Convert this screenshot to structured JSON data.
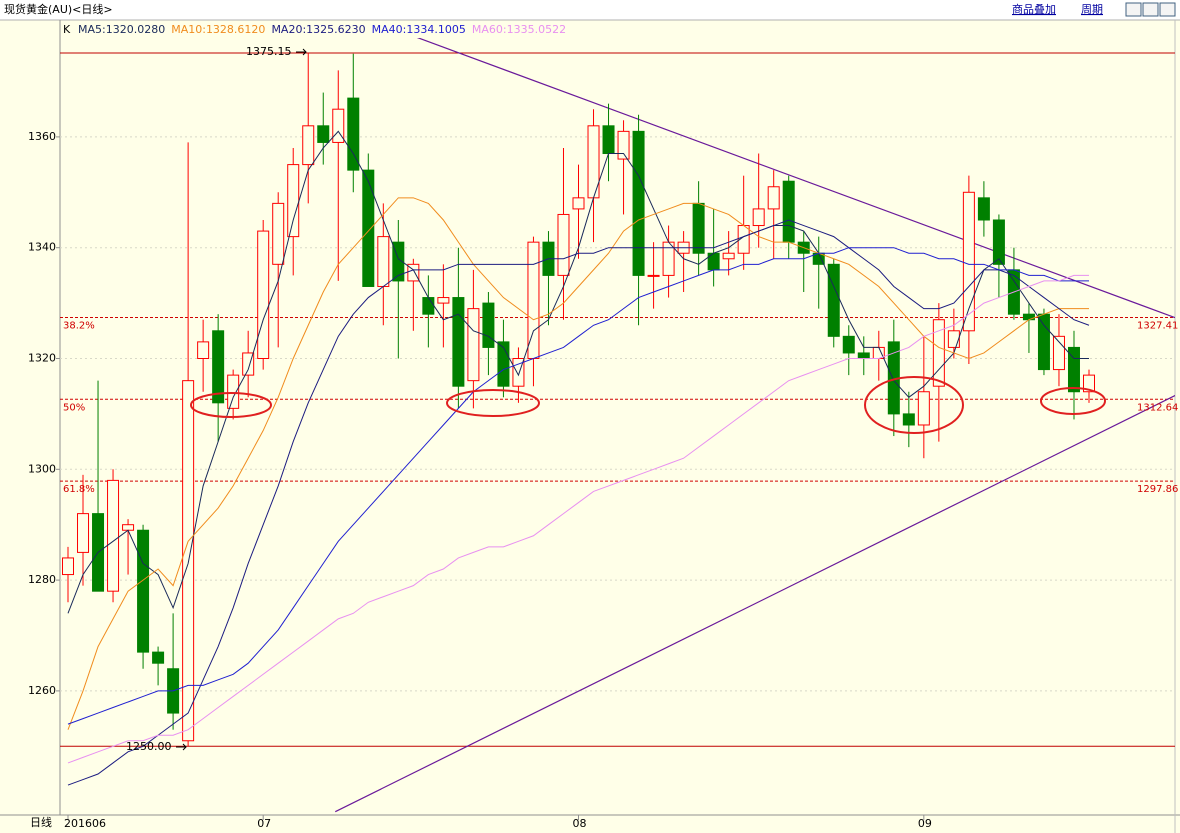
{
  "header": {
    "title": "现货黄金(AU)<日线>",
    "links": [
      "商品叠加",
      "周期"
    ],
    "bottom_label": "日线"
  },
  "chart_data": {
    "type": "candlestick",
    "legend_prefix": "K",
    "ylim": [
      1237.6,
      1381.1
    ],
    "yticks": [
      1260,
      1280,
      1300,
      1320,
      1340,
      1360
    ],
    "grid": true,
    "up_color": "#ff0000",
    "down_color": "#008000",
    "categories": [
      "201606",
      null,
      null,
      null,
      null,
      null,
      null,
      null,
      null,
      null,
      null,
      null,
      null,
      "07",
      null,
      null,
      null,
      null,
      null,
      null,
      null,
      null,
      null,
      null,
      null,
      null,
      null,
      null,
      null,
      null,
      null,
      null,
      null,
      null,
      "08",
      null,
      null,
      null,
      null,
      null,
      null,
      null,
      null,
      null,
      null,
      null,
      null,
      null,
      null,
      null,
      null,
      null,
      null,
      null,
      null,
      null,
      null,
      "09",
      null,
      null,
      null,
      null,
      null,
      null,
      null,
      null,
      null,
      null,
      null
    ],
    "open": [
      1281,
      1285,
      1292,
      1278,
      1289,
      1289,
      1267,
      1264,
      1251,
      1320,
      1325,
      1311,
      1317,
      1320,
      1337,
      1342,
      1355,
      1362,
      1359,
      1367,
      1354,
      1333,
      1341,
      1334,
      1331,
      1330,
      1331,
      1316,
      1330,
      1323,
      1315,
      1320,
      1341,
      1335,
      1347,
      1349,
      1362,
      1356,
      1361,
      1335,
      1335,
      1339,
      1348,
      1339,
      1338,
      1339,
      1344,
      1347,
      1352,
      1341,
      1339,
      1337,
      1324,
      1321,
      1320,
      1323,
      1310,
      1308,
      1315,
      1322,
      1325,
      1349,
      1345,
      1336,
      1328,
      1328,
      1318,
      1322,
      1314
    ],
    "high": [
      1286,
      1299,
      1316,
      1300,
      1291,
      1290,
      1268,
      1274,
      1359,
      1327,
      1328,
      1318,
      1325,
      1345,
      1350,
      1358,
      1375.15,
      1368,
      1372,
      1375,
      1357,
      1348,
      1345,
      1338,
      1335,
      1337,
      1340,
      1336,
      1332,
      1327,
      1322,
      1342,
      1343,
      1358,
      1355,
      1365,
      1366,
      1363,
      1364,
      1341,
      1344,
      1343,
      1352,
      1347,
      1343,
      1353,
      1357,
      1354,
      1353,
      1343,
      1342,
      1338,
      1326,
      1324,
      1325,
      1327,
      1314,
      1324,
      1330,
      1329,
      1353,
      1352,
      1346,
      1340,
      1330,
      1329,
      1328,
      1325,
      1318
    ],
    "low": [
      1276,
      1279,
      1278,
      1276,
      1281,
      1264,
      1261,
      1253,
      1250,
      1314,
      1305,
      1309,
      1313,
      1318,
      1322,
      1335,
      1348,
      1355,
      1334,
      1350,
      1333,
      1326,
      1320,
      1325,
      1322,
      1322,
      1311,
      1311,
      1317,
      1313,
      1312,
      1315,
      1326,
      1327,
      1338,
      1341,
      1352,
      1346,
      1326,
      1329,
      1331,
      1332,
      1335,
      1333,
      1335,
      1336,
      1340,
      1338,
      1338,
      1332,
      1329,
      1322,
      1317,
      1317,
      1316,
      1306,
      1304,
      1302,
      1305,
      1320,
      1319,
      1342,
      1331,
      1327,
      1321,
      1317,
      1315,
      1309,
      1312
    ],
    "close": [
      1284,
      1292,
      1278,
      1298,
      1290,
      1267,
      1265,
      1256,
      1316,
      1323,
      1312,
      1317,
      1321,
      1343,
      1348,
      1355,
      1362,
      1359,
      1365,
      1354,
      1333,
      1342,
      1334,
      1337,
      1328,
      1331,
      1315,
      1329,
      1322,
      1315,
      1320,
      1341,
      1335,
      1346,
      1349,
      1362,
      1357,
      1361,
      1335,
      1335,
      1341,
      1341,
      1339,
      1336,
      1339,
      1344,
      1347,
      1351,
      1341,
      1339,
      1337,
      1324,
      1321,
      1320,
      1322,
      1310,
      1308,
      1314,
      1327,
      1325,
      1350,
      1345,
      1337,
      1328,
      1327,
      1318,
      1324,
      1314,
      1317
    ],
    "series": [
      {
        "name": "MA5:1320.0280",
        "color": "#1a2a5a",
        "values": [
          1274,
          1281,
          1285,
          1287,
          1289,
          1283,
          1281,
          1275,
          1283,
          1297,
          1305,
          1313,
          1318,
          1327,
          1334,
          1345,
          1354,
          1358,
          1361,
          1357,
          1352,
          1345,
          1338,
          1336,
          1331,
          1327,
          1328,
          1325,
          1324,
          1322,
          1317,
          1325,
          1327,
          1333,
          1340,
          1349,
          1357,
          1357,
          1353,
          1347,
          1341,
          1338,
          1337,
          1339,
          1340,
          1342,
          1343,
          1344,
          1344,
          1343,
          1339,
          1333,
          1327,
          1322,
          1322,
          1316,
          1313,
          1315,
          1318,
          1321,
          1329,
          1336,
          1338,
          1334,
          1330,
          1326,
          1323,
          1320,
          1320
        ]
      },
      {
        "name": "MA10:1328.6120",
        "color": "#f08c1e",
        "values": [
          1253,
          1260,
          1268,
          1273,
          1278,
          1280,
          1282,
          1279,
          1287,
          1290,
          1293,
          1297,
          1302,
          1307,
          1313,
          1320,
          1326,
          1332,
          1337,
          1340,
          1343,
          1346,
          1349,
          1349,
          1348,
          1345,
          1341,
          1337,
          1334,
          1331,
          1329,
          1327,
          1328,
          1330,
          1333,
          1336,
          1339,
          1343,
          1345,
          1346,
          1347,
          1348,
          1348,
          1347,
          1346,
          1344,
          1342,
          1341,
          1341,
          1340,
          1339,
          1338,
          1337,
          1335,
          1333,
          1330,
          1327,
          1324,
          1322,
          1321,
          1320,
          1321,
          1323,
          1325,
          1327,
          1328,
          1329,
          1329,
          1329
        ]
      },
      {
        "name": "MA20:1325.6230",
        "color": "#1c1c80",
        "values": [
          1243,
          1244,
          1245,
          1247,
          1249,
          1250,
          1252,
          1254,
          1256,
          1262,
          1268,
          1275,
          1283,
          1290,
          1297,
          1305,
          1312,
          1318,
          1324,
          1328,
          1331,
          1333,
          1335,
          1336,
          1336,
          1336,
          1337,
          1337,
          1337,
          1337,
          1337,
          1337,
          1338,
          1338,
          1339,
          1339,
          1340,
          1340,
          1340,
          1340,
          1340,
          1340,
          1340,
          1340,
          1341,
          1342,
          1343,
          1344,
          1345,
          1344,
          1343,
          1342,
          1340,
          1338,
          1336,
          1333,
          1331,
          1329,
          1329,
          1330,
          1333,
          1336,
          1336,
          1335,
          1333,
          1331,
          1329,
          1327,
          1326
        ]
      },
      {
        "name": "MA40:1334.1005",
        "color": "#2020d0",
        "values": [
          1254,
          1255,
          1256,
          1257,
          1258,
          1259,
          1260,
          1260,
          1261,
          1261,
          1262,
          1263,
          1265,
          1268,
          1271,
          1275,
          1279,
          1283,
          1287,
          1290,
          1293,
          1296,
          1299,
          1302,
          1305,
          1308,
          1311,
          1314,
          1316,
          1318,
          1319,
          1320,
          1321,
          1322,
          1324,
          1326,
          1327,
          1329,
          1331,
          1332,
          1333,
          1334,
          1335,
          1336,
          1336,
          1337,
          1337,
          1338,
          1338,
          1338,
          1339,
          1339,
          1340,
          1340,
          1340,
          1340,
          1339,
          1339,
          1338,
          1338,
          1337,
          1337,
          1336,
          1336,
          1335,
          1335,
          1334,
          1334,
          1334
        ]
      },
      {
        "name": "MA60:1335.0522",
        "color": "#e890f0",
        "values": [
          1247,
          1248,
          1249,
          1250,
          1251,
          1251,
          1252,
          1252,
          1253,
          1255,
          1257,
          1259,
          1261,
          1263,
          1265,
          1267,
          1269,
          1271,
          1273,
          1274,
          1276,
          1277,
          1278,
          1279,
          1281,
          1282,
          1284,
          1285,
          1286,
          1286,
          1287,
          1288,
          1290,
          1292,
          1294,
          1296,
          1297,
          1298,
          1299,
          1300,
          1301,
          1302,
          1304,
          1306,
          1308,
          1310,
          1312,
          1314,
          1316,
          1317,
          1318,
          1319,
          1320,
          1320,
          1320,
          1321,
          1322,
          1324,
          1325,
          1326,
          1328,
          1330,
          1331,
          1332,
          1333,
          1334,
          1334,
          1335,
          1335
        ]
      }
    ],
    "hlines": [
      {
        "value": 1375.15,
        "label": "1375.15"
      },
      {
        "value": 1250,
        "label": "1250.00"
      }
    ],
    "fib_levels": [
      {
        "value": 1327.41,
        "label": "1327.41",
        "ratio": "38.2%"
      },
      {
        "value": 1312.64,
        "label": "1312.64",
        "ratio": "50%"
      },
      {
        "value": 1297.86,
        "label": "1297.86",
        "ratio": "61.8%"
      }
    ],
    "trendlines": [
      {
        "from_index": 22.8,
        "from_value": 1378.4,
        "to_index": 73.8,
        "to_value": 1327.3
      },
      {
        "from_index": 17.8,
        "from_value": 1238.2,
        "to_index": 73.8,
        "to_value": 1313.4
      }
    ]
  }
}
